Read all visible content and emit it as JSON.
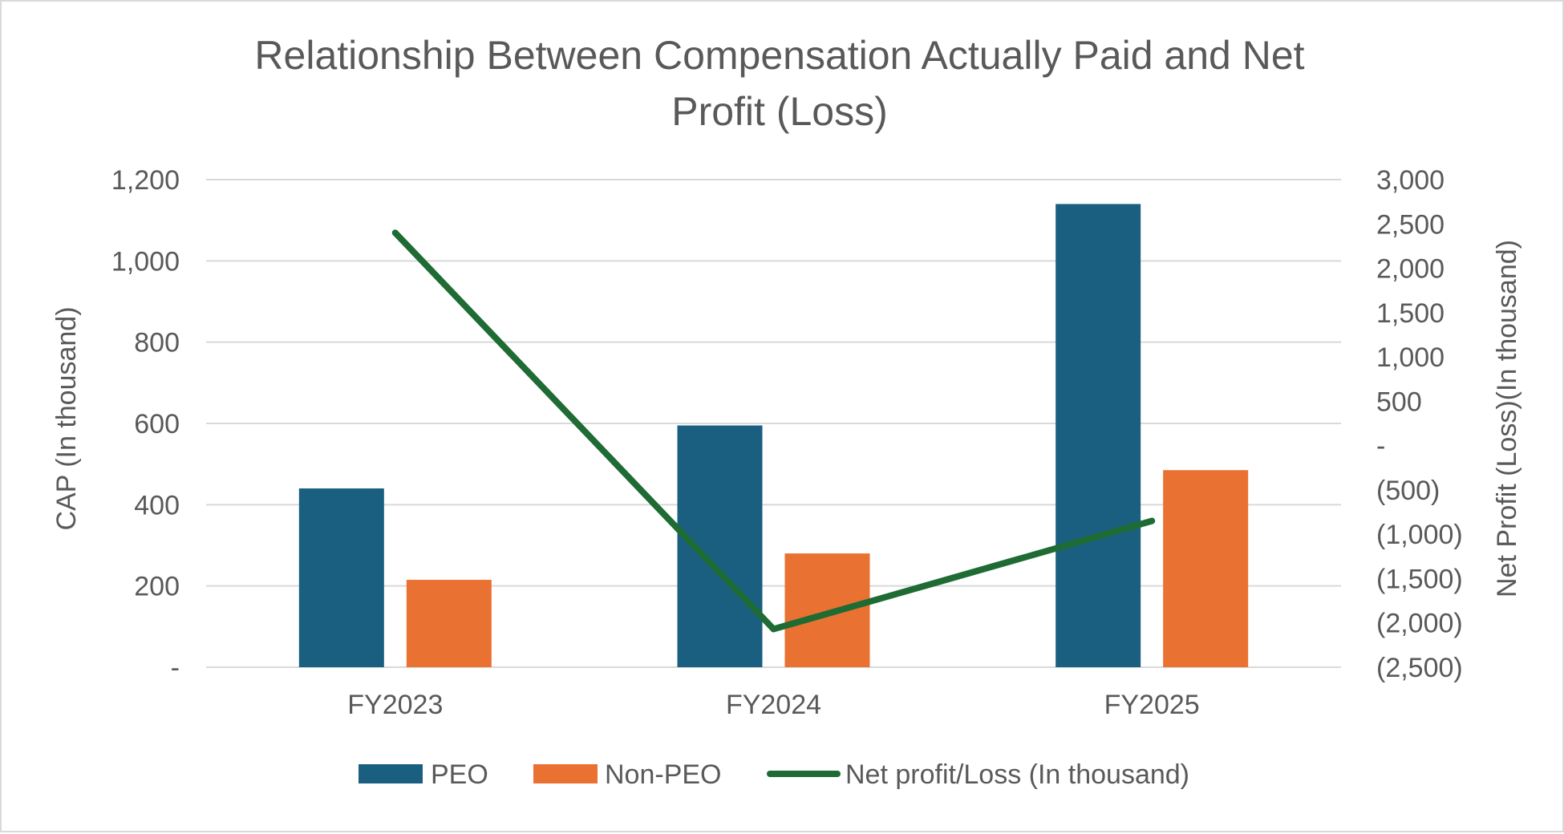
{
  "chart_data": {
    "type": "bar",
    "title_lines": [
      "Relationship Between Compensation Actually Paid and Net",
      "Profit (Loss)"
    ],
    "categories": [
      "FY2023",
      "FY2024",
      "FY2025"
    ],
    "series": [
      {
        "name": "PEO",
        "type": "bar",
        "axis": "left",
        "color": "#1a5f80",
        "values": [
          440,
          595,
          1140
        ]
      },
      {
        "name": "Non-PEO",
        "type": "bar",
        "axis": "left",
        "color": "#e97132",
        "values": [
          215,
          280,
          485
        ]
      },
      {
        "name": "Net profit/Loss (In thousand)",
        "type": "line",
        "axis": "right",
        "color": "#1e6b34",
        "values": [
          2400,
          -2070,
          -850
        ]
      }
    ],
    "y_left": {
      "label": "CAP (In thousand)",
      "min": 0,
      "max": 1200,
      "ticks": [
        0,
        200,
        400,
        600,
        800,
        1000,
        1200
      ],
      "tick_labels": [
        "-",
        "200",
        "400",
        "600",
        "800",
        "1,000",
        "1,200"
      ]
    },
    "y_right": {
      "label": "Net Profit (Loss)(In thousand)",
      "min": -2500,
      "max": 3000,
      "ticks": [
        -2500,
        -2000,
        -1500,
        -1000,
        -500,
        0,
        500,
        1000,
        1500,
        2000,
        2500,
        3000
      ],
      "tick_labels": [
        "(2,500)",
        "(2,000)",
        "(1,500)",
        "(1,000)",
        "(500)",
        "-",
        "500",
        "1,000",
        "1,500",
        "2,000",
        "2,500",
        "3,000"
      ]
    },
    "grid": true,
    "legend_position": "bottom"
  }
}
